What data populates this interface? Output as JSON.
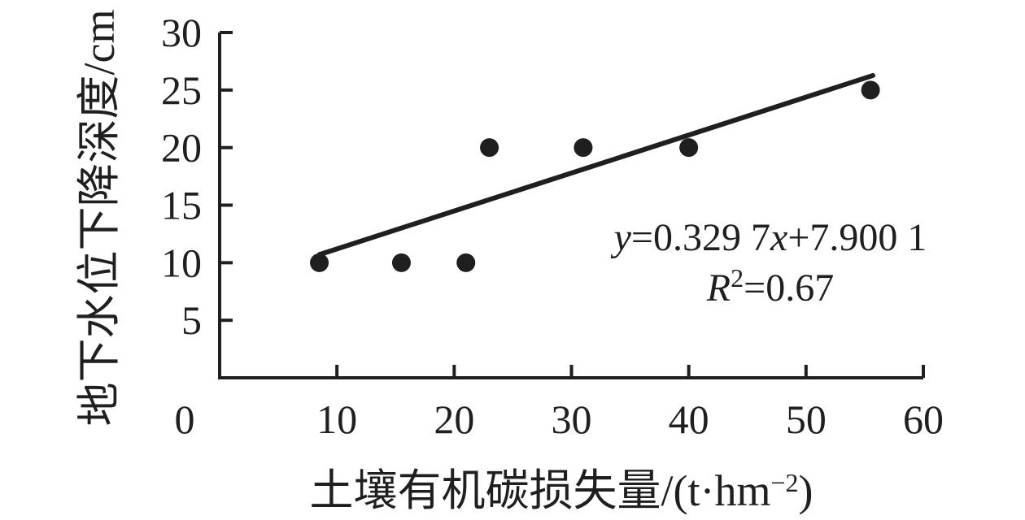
{
  "figure": {
    "background": "#ffffff",
    "ink": "#1f1f1f"
  },
  "chart_data": {
    "type": "scatter",
    "title": "",
    "xlabel": "土壤有机碳损失量/(t·hm⁻²)",
    "xlabel_parts": [
      {
        "t": "土壤有机碳损失量/(t·hm"
      },
      {
        "t": "−2",
        "sup": true
      },
      {
        "t": ")"
      }
    ],
    "ylabel": "地下水位下降深度/cm",
    "xlim": [
      0,
      60
    ],
    "ylim": [
      0,
      30
    ],
    "x_ticks": [
      0,
      10,
      20,
      30,
      40,
      50,
      60
    ],
    "y_ticks": [
      5,
      10,
      15,
      20,
      25,
      30
    ],
    "grid": false,
    "legend": null,
    "points": [
      {
        "x": 8.5,
        "y": 10
      },
      {
        "x": 15.5,
        "y": 10
      },
      {
        "x": 21,
        "y": 10
      },
      {
        "x": 23,
        "y": 20
      },
      {
        "x": 31,
        "y": 20
      },
      {
        "x": 40,
        "y": 20
      },
      {
        "x": 55.5,
        "y": 25
      }
    ],
    "trendline": {
      "slope": 0.3297,
      "intercept": 7.9001,
      "x_start": 8.5,
      "x_end": 55.7
    },
    "annotations": {
      "equation": "y=0.329 7x+7.900 1",
      "equation_parts": [
        {
          "t": "y",
          "i": true
        },
        {
          "t": "=0.329 7"
        },
        {
          "t": "x",
          "i": true
        },
        {
          "t": "+7.900 1"
        }
      ],
      "r_squared": "R²=0.67",
      "r_squared_parts": [
        {
          "t": "R",
          "i": true
        },
        {
          "t": "2",
          "sup": true
        },
        {
          "t": "=0.67"
        }
      ]
    }
  }
}
